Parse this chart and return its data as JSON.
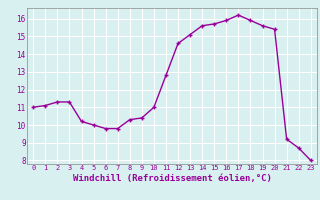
{
  "x": [
    0,
    1,
    2,
    3,
    4,
    5,
    6,
    7,
    8,
    9,
    10,
    11,
    12,
    13,
    14,
    15,
    16,
    17,
    18,
    19,
    20,
    21,
    22,
    23
  ],
  "y": [
    11.0,
    11.1,
    11.3,
    11.3,
    10.2,
    10.0,
    9.8,
    9.8,
    10.3,
    10.4,
    11.0,
    12.8,
    14.6,
    15.1,
    15.6,
    15.7,
    15.9,
    16.2,
    15.9,
    15.6,
    15.4,
    9.2,
    8.7,
    8.0
  ],
  "line_color": "#990099",
  "marker": "+",
  "marker_size": 3,
  "line_width": 1.0,
  "xlabel": "Windchill (Refroidissement éolien,°C)",
  "xlabel_fontsize": 6.5,
  "bg_color": "#d8f0f0",
  "grid_color": "#ffffff",
  "tick_label_color": "#990099",
  "axis_label_color": "#990099",
  "ylim_min": 7.8,
  "ylim_max": 16.6,
  "yticks": [
    8,
    9,
    10,
    11,
    12,
    13,
    14,
    15,
    16
  ],
  "xlim_min": -0.5,
  "xlim_max": 23.5,
  "xticks": [
    0,
    1,
    2,
    3,
    4,
    5,
    6,
    7,
    8,
    9,
    10,
    11,
    12,
    13,
    14,
    15,
    16,
    17,
    18,
    19,
    20,
    21,
    22,
    23
  ]
}
